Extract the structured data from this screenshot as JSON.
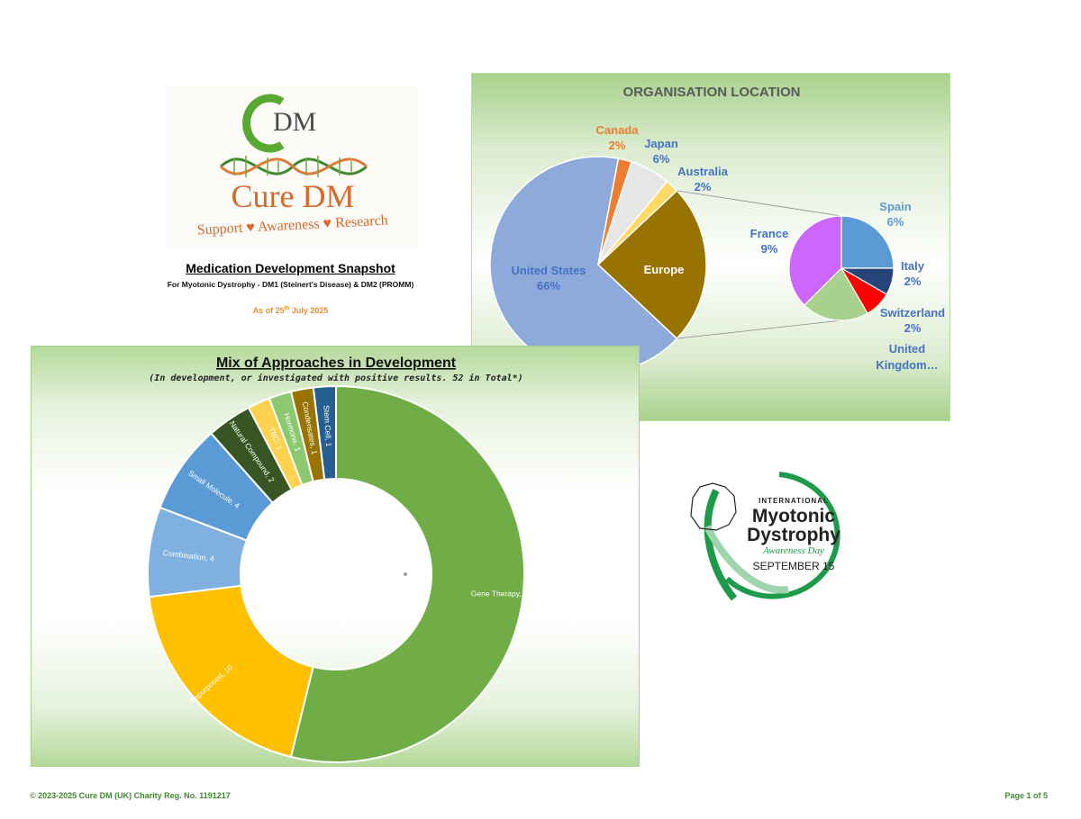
{
  "logo": {
    "letters": "DM",
    "name": "Cure DM",
    "tagline": "Support ♥ Awareness ♥ Research"
  },
  "snapshot": {
    "title": "Medication Development Snapshot",
    "subtitle": "For Myotonic Dystrophy - DM1 (Steinert's Disease) & DM2 (PROMM)",
    "date_prefix": "As of 25",
    "date_sup": "th",
    "date_suffix": " July 2025"
  },
  "awareness_logo": {
    "line1": "INTERNATIONAL",
    "line2": "Myotonic",
    "line3": "Dystrophy",
    "line4": "Awareness Day",
    "line5": "SEPTEMBER 15"
  },
  "footer": {
    "copyright": "© 2023-2025 Cure DM (UK) Charity Reg. No. 1191217",
    "page": "Page 1 of 5"
  },
  "colors": {
    "panel_green": "#a9d28d",
    "footer_green": "#3f8a2f",
    "date_orange": "#e8902a"
  },
  "chart_data": [
    {
      "type": "pie",
      "title": "ORGANISATION LOCATION",
      "slices": [
        {
          "label": "United States",
          "value": 66,
          "display": "66%",
          "color": "#8eaadb"
        },
        {
          "label": "Canada",
          "value": 2,
          "display": "2%",
          "color": "#ed7d31"
        },
        {
          "label": "Japan",
          "value": 6,
          "display": "6%",
          "color": "#e7e6e6"
        },
        {
          "label": "Australia",
          "value": 2,
          "display": "2%",
          "color": "#ffd966"
        },
        {
          "label": "Europe",
          "value": 24,
          "display": "",
          "color": "#987300"
        }
      ],
      "breakdown_of": "Europe",
      "breakdown": [
        {
          "label": "Spain",
          "value": 6,
          "display": "6%",
          "color": "#5b9bd5"
        },
        {
          "label": "Italy",
          "value": 2,
          "display": "2%",
          "color": "#264478"
        },
        {
          "label": "Switzerland",
          "value": 2,
          "display": "2%",
          "color": "#ff0000"
        },
        {
          "label": "United Kingdom…",
          "value": 5,
          "display": "",
          "color": "#a9d18e"
        },
        {
          "label": "France",
          "value": 9,
          "display": "9%",
          "color": "#cc66ff"
        }
      ]
    },
    {
      "type": "donut",
      "title": "Mix of Approaches in Development",
      "subtitle": "(In development, or investigated with positive results. 52 in Total*)",
      "slices": [
        {
          "label": "Gene Therapy",
          "value": 28,
          "color": "#70ad47"
        },
        {
          "label": "Repurposed",
          "value": 10,
          "color": "#ffc000"
        },
        {
          "label": "Combination",
          "value": 4,
          "color": "#7fb0e0"
        },
        {
          "label": "Small Molecule",
          "value": 4,
          "color": "#5b9bd5"
        },
        {
          "label": "Natural Compound",
          "value": 2,
          "color": "#375623"
        },
        {
          "label": "TBC",
          "value": 1,
          "color": "#ffd34f"
        },
        {
          "label": "Hormone",
          "value": 1,
          "color": "#8bc870"
        },
        {
          "label": "Condensates",
          "value": 1,
          "color": "#997300"
        },
        {
          "label": "Stem Cell",
          "value": 1,
          "color": "#255e91"
        }
      ]
    }
  ]
}
